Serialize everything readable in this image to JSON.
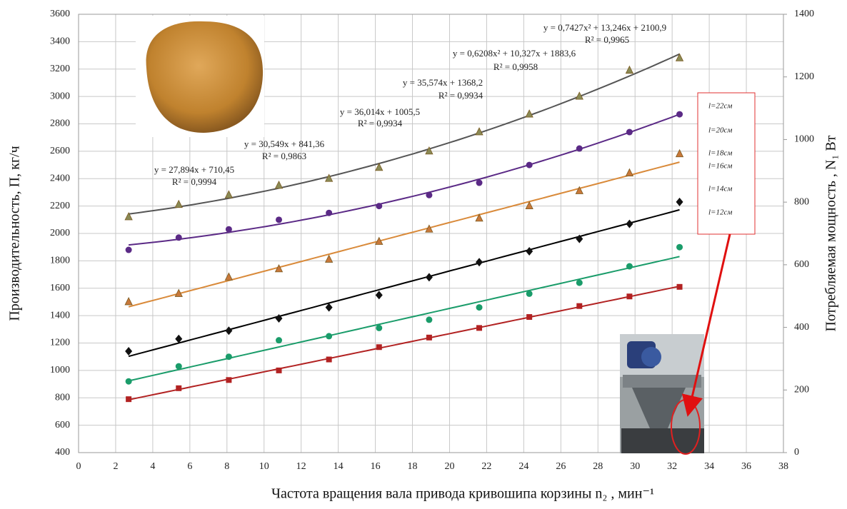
{
  "chart_data": {
    "type": "scatter",
    "x_label": "Частота вращения вала привода кривошипа корзины n₂ , мин⁻¹",
    "y_label": "Производительность, П, кг/ч",
    "y2_label": "Потребляемая  мощность , N₁ Вт",
    "x": [
      2.7,
      5.4,
      8.1,
      10.8,
      13.5,
      16.2,
      18.9,
      21.6,
      24.3,
      27,
      29.7,
      32.4
    ],
    "series": [
      {
        "name": "l=22см",
        "color": "#8a8a55",
        "line_color": "#555555",
        "marker": "triangle",
        "values": [
          2120,
          2210,
          2280,
          2350,
          2400,
          2480,
          2600,
          2740,
          2870,
          3000,
          3190,
          3280
        ],
        "trend_equation": "y = 0,7427x² + 13,246x + 2100,9",
        "r2_label": "R² = 0,9965"
      },
      {
        "name": "l=20см",
        "color": "#5b2a86",
        "line_color": "#5b2a86",
        "marker": "circle",
        "values": [
          1880,
          1970,
          2030,
          2100,
          2150,
          2200,
          2280,
          2370,
          2500,
          2620,
          2740,
          2870
        ],
        "trend_equation": "y = 0,6208x² + 10,327x + 1883,6",
        "r2_label": "R² = 0,9958"
      },
      {
        "name": "l=18см",
        "color": "#c8783a",
        "line_color": "#d98a3a",
        "marker": "triangle",
        "values": [
          1500,
          1560,
          1680,
          1740,
          1810,
          1940,
          2030,
          2110,
          2200,
          2310,
          2440,
          2580
        ],
        "trend_equation": "y = 35,574x + 1368,2",
        "r2_label": "R² = 0,9934"
      },
      {
        "name": "l=16см",
        "color": "#111111",
        "line_color": "#000000",
        "marker": "diamond",
        "values": [
          1140,
          1230,
          1290,
          1380,
          1460,
          1550,
          1680,
          1790,
          1870,
          1960,
          2070,
          2230
        ],
        "trend_equation": "y = 36,014x + 1005,5",
        "r2_label": "R² = 0,9934"
      },
      {
        "name": "l=14см",
        "color": "#1a9c6a",
        "line_color": "#1a9c6a",
        "marker": "circle",
        "values": [
          920,
          1030,
          1100,
          1220,
          1250,
          1310,
          1370,
          1460,
          1560,
          1640,
          1760,
          1900
        ],
        "trend_equation": "y = 30,549x + 841,36",
        "r2_label": "R² = 0,9863"
      },
      {
        "name": "l=12см",
        "color": "#b22222",
        "line_color": "#b22222",
        "marker": "square",
        "values": [
          790,
          870,
          930,
          1000,
          1080,
          1170,
          1240,
          1310,
          1390,
          1470,
          1540,
          1610
        ],
        "trend_equation": "y = 27,894x + 710,45",
        "r2_label": "R² = 0,9994"
      }
    ],
    "xlim": [
      0,
      38
    ],
    "xticks": [
      0,
      2,
      4,
      6,
      8,
      10,
      12,
      14,
      16,
      18,
      20,
      22,
      24,
      26,
      28,
      30,
      32,
      34,
      36,
      38
    ],
    "ylim": [
      400,
      3600
    ],
    "yticks": [
      400,
      600,
      800,
      1000,
      1200,
      1400,
      1600,
      1800,
      2000,
      2200,
      2400,
      2600,
      2800,
      3000,
      3200,
      3400,
      3600
    ],
    "y2lim": [
      0,
      1400
    ],
    "y2ticks": [
      0,
      200,
      400,
      600,
      800,
      1000,
      1200,
      1400
    ],
    "grid": true
  }
}
